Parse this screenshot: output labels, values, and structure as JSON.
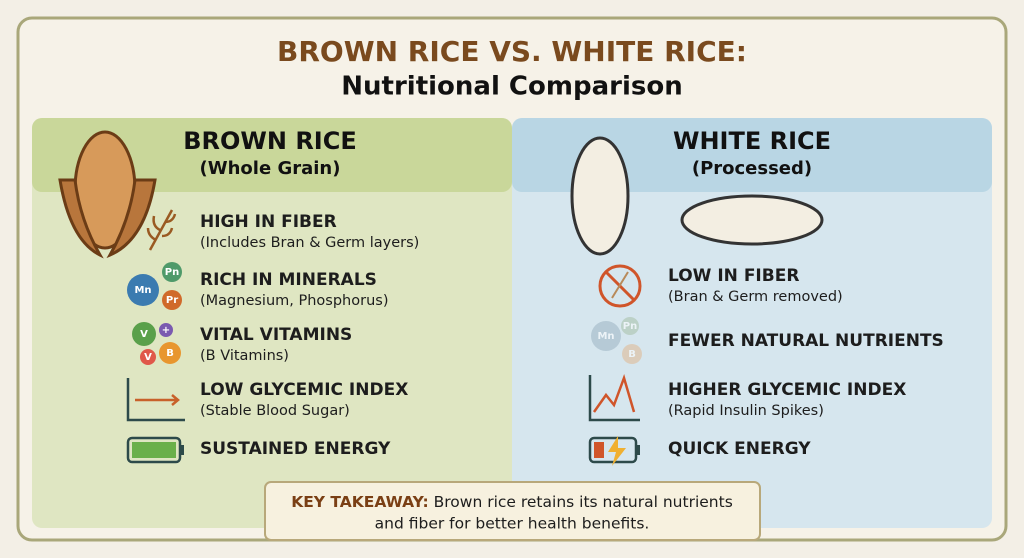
{
  "header": {
    "title": "BROWN RICE VS. WHITE RICE:",
    "subtitle": "Nutritional Comparison"
  },
  "brown": {
    "heading": "BROWN RICE",
    "subheading": "(Whole Grain)",
    "items": [
      {
        "title": "HIGH IN FIBER",
        "detail": "(Includes Bran & Germ layers)"
      },
      {
        "title": "RICH IN MINERALS",
        "detail": "(Magnesium, Phosphorus)"
      },
      {
        "title": "VITAL VITAMINS",
        "detail": "(B Vitamins)"
      },
      {
        "title": "LOW GLYCEMIC INDEX",
        "detail": "(Stable Blood Sugar)"
      },
      {
        "title": "SUSTAINED ENERGY"
      }
    ],
    "mineral_icon": [
      "Mn",
      "Pn",
      "Pr"
    ],
    "vitamin_icon": [
      "V",
      "+",
      "V",
      "B"
    ]
  },
  "white": {
    "heading": "WHITE RICE",
    "subheading": "(Processed)",
    "items": [
      {
        "title": "LOW IN FIBER",
        "detail": "(Bran & Germ removed)"
      },
      {
        "title": "FEWER NATURAL NUTRIENTS"
      },
      {
        "title": "HIGHER GLYCEMIC INDEX",
        "detail": "(Rapid Insulin Spikes)"
      },
      {
        "title": "QUICK ENERGY"
      }
    ],
    "nutrient_icon": [
      "Mn",
      "Pn",
      "B"
    ]
  },
  "takeaway": {
    "label": "KEY TAKEAWAY:",
    "lines": [
      "Brown rice retains its natural nutrients",
      "and fiber for better health benefits."
    ]
  }
}
